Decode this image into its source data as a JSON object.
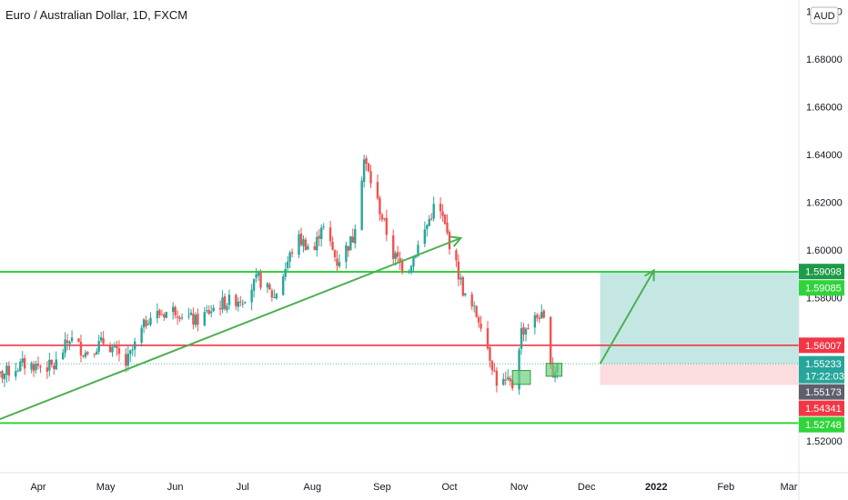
{
  "header": {
    "title": "Euro / Australian Dollar, 1D, FXCM"
  },
  "axis": {
    "currency_label": "AUD"
  },
  "colors": {
    "up": "#26a69a",
    "down": "#ef5350",
    "green_line": "#2fd43a",
    "red_line": "#f23645",
    "trend": "#4caf50",
    "target_zone": "#b2dfdb",
    "stop_zone": "#fcd9db",
    "axis_line": "#e0e3eb"
  },
  "chart_data": {
    "type": "candlestick",
    "title": "Euro / Australian Dollar, 1D, FXCM",
    "y_ticks": [
      1.52,
      1.54,
      1.56,
      1.58,
      1.6,
      1.62,
      1.64,
      1.66,
      1.68,
      1.7
    ],
    "y_tick_labels": [
      "1.52000",
      "1.54000",
      "1.56000",
      "1.58000",
      "1.60000",
      "1.62000",
      "1.64000",
      "1.66000",
      "1.68000",
      "1.70000"
    ],
    "x_ticks": [
      {
        "label": "Apr",
        "date": "2021-04-01"
      },
      {
        "label": "May",
        "date": "2021-05-01"
      },
      {
        "label": "Jun",
        "date": "2021-06-01"
      },
      {
        "label": "Jul",
        "date": "2021-07-01"
      },
      {
        "label": "Aug",
        "date": "2021-08-01"
      },
      {
        "label": "Sep",
        "date": "2021-09-01"
      },
      {
        "label": "Oct",
        "date": "2021-10-01"
      },
      {
        "label": "Nov",
        "date": "2021-11-01"
      },
      {
        "label": "Dec",
        "date": "2021-12-01"
      },
      {
        "label": "2022",
        "date": "2022-01-01",
        "bold": true
      },
      {
        "label": "Feb",
        "date": "2022-02-01"
      },
      {
        "label": "Mar",
        "date": "2022-03-01"
      }
    ],
    "price_path": [
      [
        "2021-03-10",
        1.545
      ],
      [
        "2021-03-25",
        1.552
      ],
      [
        "2021-04-08",
        1.551
      ],
      [
        "2021-04-15",
        1.563
      ],
      [
        "2021-04-22",
        1.557
      ],
      [
        "2021-05-01",
        1.562
      ],
      [
        "2021-05-10",
        1.552
      ],
      [
        "2021-05-20",
        1.572
      ],
      [
        "2021-06-01",
        1.575
      ],
      [
        "2021-06-10",
        1.57
      ],
      [
        "2021-06-20",
        1.577
      ],
      [
        "2021-07-01",
        1.58
      ],
      [
        "2021-07-08",
        1.588
      ],
      [
        "2021-07-15",
        1.58
      ],
      [
        "2021-07-25",
        1.605
      ],
      [
        "2021-08-02",
        1.6
      ],
      [
        "2021-08-05",
        1.611
      ],
      [
        "2021-08-12",
        1.595
      ],
      [
        "2021-08-19",
        1.605
      ],
      [
        "2021-08-24",
        1.638
      ],
      [
        "2021-08-30",
        1.62
      ],
      [
        "2021-09-06",
        1.598
      ],
      [
        "2021-09-12",
        1.591
      ],
      [
        "2021-09-20",
        1.608
      ],
      [
        "2021-09-25",
        1.62
      ],
      [
        "2021-09-28",
        1.613
      ],
      [
        "2021-10-01",
        1.603
      ],
      [
        "2021-10-08",
        1.58
      ],
      [
        "2021-10-15",
        1.57
      ],
      [
        "2021-10-22",
        1.545
      ],
      [
        "2021-10-27",
        1.544
      ],
      [
        "2021-10-29",
        1.543
      ],
      [
        "2021-11-02",
        1.566
      ],
      [
        "2021-11-06",
        1.569
      ],
      [
        "2021-11-10",
        1.573
      ],
      [
        "2021-11-13",
        1.568
      ],
      [
        "2021-11-16",
        1.548
      ],
      [
        "2021-11-18",
        1.5523
      ]
    ],
    "levels": [
      {
        "name": "resistance",
        "price": 1.59085,
        "label": "1.59085",
        "color": "#2fd43a"
      },
      {
        "name": "level",
        "price": 1.56007,
        "label": "1.56007",
        "color": "#f23645"
      },
      {
        "name": "support",
        "price": 1.52748,
        "label": "1.52748",
        "color": "#2fd43a"
      }
    ],
    "trendline": {
      "from": [
        "2021-03-12",
        1.528
      ],
      "to": [
        "2021-10-06",
        1.605
      ]
    },
    "projection": {
      "from": [
        "2021-12-07",
        1.5523
      ],
      "to": [
        "2021-12-31",
        1.5915
      ]
    },
    "position": {
      "start": "2021-12-07",
      "end": "2022-03-20",
      "entry": 1.5523,
      "target": 1.59085,
      "stop": 1.5434
    },
    "highlight_boxes": [
      {
        "start": "2021-10-29",
        "end": "2021-11-06",
        "low": 1.5437,
        "high": 1.5495
      },
      {
        "start": "2021-11-13",
        "end": "2021-11-20",
        "low": 1.5471,
        "high": 1.5525
      }
    ],
    "price_badges": [
      {
        "label": "1.59098",
        "price": 1.59098,
        "color": "#1e9a48"
      },
      {
        "label": "1.59085",
        "price": 1.59085,
        "color": "#2fd43a"
      },
      {
        "label": "1.56007",
        "price": 1.56007,
        "color": "#f23645"
      },
      {
        "label": "1.55233",
        "label2": "17:22:03",
        "price": 1.55233,
        "color": "#26a69a"
      },
      {
        "label": "1.55173",
        "price": 1.55173,
        "color": "#5d606b"
      },
      {
        "label": "1.54341",
        "price": 1.54341,
        "color": "#f23645"
      },
      {
        "label": "1.52748",
        "price": 1.52748,
        "color": "#2fd43a"
      }
    ]
  }
}
